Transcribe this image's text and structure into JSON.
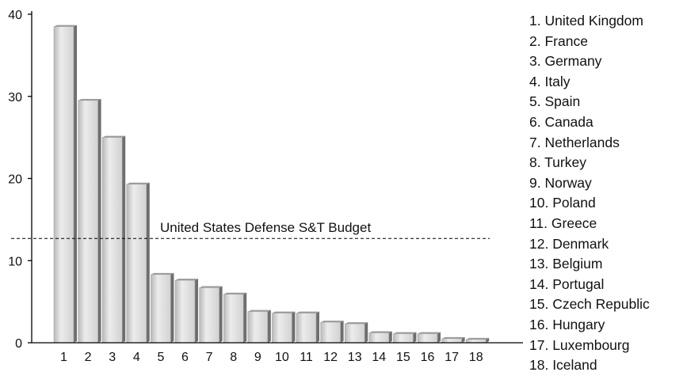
{
  "chart_data": {
    "type": "bar",
    "categories": [
      "1",
      "2",
      "3",
      "4",
      "5",
      "6",
      "7",
      "8",
      "9",
      "10",
      "11",
      "12",
      "13",
      "14",
      "15",
      "16",
      "17",
      "18"
    ],
    "values": [
      38.5,
      29.5,
      25.0,
      19.3,
      8.3,
      7.6,
      6.7,
      5.9,
      3.8,
      3.6,
      3.6,
      2.5,
      2.3,
      1.2,
      1.1,
      1.1,
      0.5,
      0.4
    ],
    "ylim": [
      0,
      40
    ],
    "yticks": [
      0,
      10,
      20,
      30,
      40
    ],
    "title": "",
    "xlabel": "",
    "ylabel": "",
    "reference_line": {
      "value": 12.7,
      "label": "United States Defense S&T Budget"
    },
    "legend": [
      "1. United Kingdom",
      "2. France",
      "3. Germany",
      "4. Italy",
      "5. Spain",
      "6. Canada",
      "7. Netherlands",
      "8. Turkey",
      "9. Norway",
      "10. Poland",
      "11. Greece",
      "12. Denmark",
      "13. Belgium",
      "14. Portugal",
      "15. Czech Republic",
      "16. Hungary",
      "17. Luxembourg",
      "18. Iceland"
    ],
    "legend_placement": "right",
    "grid": false,
    "colors": {
      "bar_front": "#dcdcdc",
      "bar_side": "#6e6e6e",
      "bar_top": "#9a9a9a",
      "axis": "#000000"
    }
  }
}
